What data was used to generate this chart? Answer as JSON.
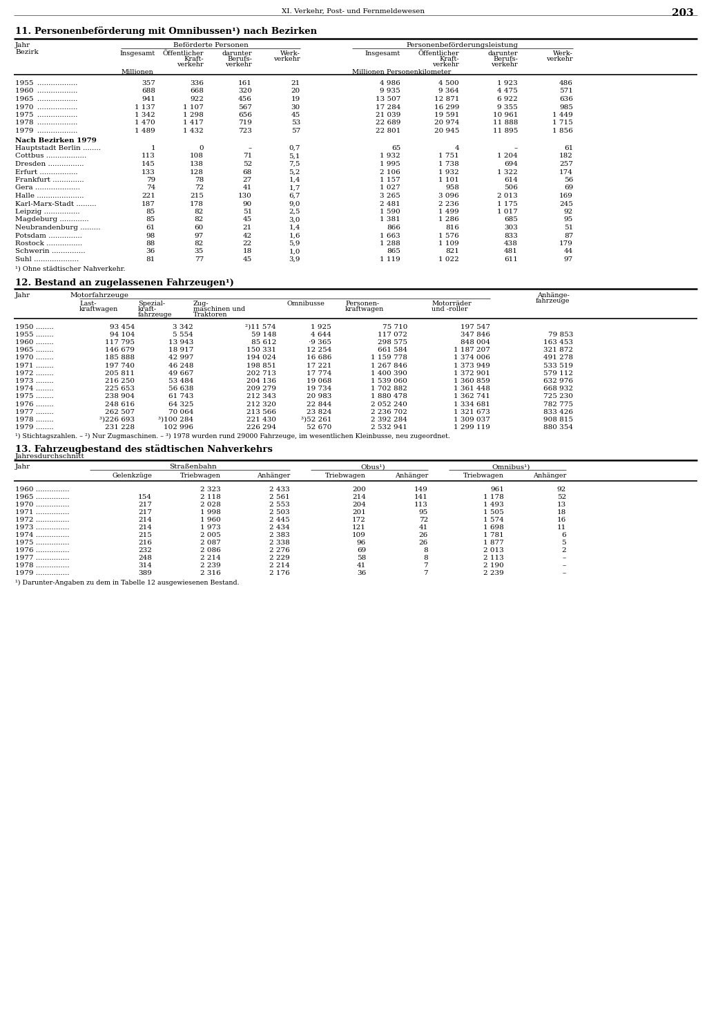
{
  "page_header": "XI. Verkehr, Post- und Fernmeldewesen",
  "page_number": "203",
  "background_color": "#ffffff",
  "text_color": "#000000",
  "section11_title": "11. Personenbeförderung mit Omnibussen¹) nach Bezirken",
  "section11_footnote": "¹) Ohne städtischer Nahverkehr.",
  "sec11_years": [
    [
      "1955",
      "357",
      "336",
      "161",
      "21",
      "4 986",
      "4 500",
      "1 923",
      "486"
    ],
    [
      "1960",
      "688",
      "668",
      "320",
      "20",
      "9 935",
      "9 364",
      "4 475",
      "571"
    ],
    [
      "1965",
      "941",
      "922",
      "456",
      "19",
      "13 507",
      "12 871",
      "6 922",
      "636"
    ],
    [
      "1970",
      "1 137",
      "1 107",
      "567",
      "30",
      "17 284",
      "16 299",
      "9 355",
      "985"
    ],
    [
      "1975",
      "1 342",
      "1 298",
      "656",
      "45",
      "21 039",
      "19 591",
      "10 961",
      "1 449"
    ],
    [
      "1978",
      "1 470",
      "1 417",
      "719",
      "53",
      "22 689",
      "20 974",
      "11 888",
      "1 715"
    ],
    [
      "1979",
      "1 489",
      "1 432",
      "723",
      "57",
      "22 801",
      "20 945",
      "11 895",
      "1 856"
    ]
  ],
  "sec11_bezirke_header": "Nach Bezirken 1979",
  "sec11_bezirke": [
    [
      "Hauptstadt Berlin",
      "1",
      "0",
      "–",
      "0,7",
      "65",
      "4",
      "–",
      "61"
    ],
    [
      "Cottbus",
      "113",
      "108",
      "71",
      "5,1",
      "1 932",
      "1 751",
      "1 204",
      "182"
    ],
    [
      "Dresden",
      "145",
      "138",
      "52",
      "7,5",
      "1 995",
      "1 738",
      "694",
      "257"
    ],
    [
      "Erfurt",
      "133",
      "128",
      "68",
      "5,2",
      "2 106",
      "1 932",
      "1 322",
      "174"
    ],
    [
      "Frankfurt",
      "79",
      "78",
      "27",
      "1,4",
      "1 157",
      "1 101",
      "614",
      "56"
    ],
    [
      "Gera",
      "74",
      "72",
      "41",
      "1,7",
      "1 027",
      "958",
      "506",
      "69"
    ],
    [
      "Halle",
      "221",
      "215",
      "130",
      "6,7",
      "3 265",
      "3 096",
      "2 013",
      "169"
    ],
    [
      "Karl-Marx-Stadt",
      "187",
      "178",
      "90",
      "9,0",
      "2 481",
      "2 236",
      "1 175",
      "245"
    ],
    [
      "Leipzig",
      "85",
      "82",
      "51",
      "2,5",
      "1 590",
      "1 499",
      "1 017",
      "92"
    ],
    [
      "Magdeburg",
      "85",
      "82",
      "45",
      "3,0",
      "1 381",
      "1 286",
      "685",
      "95"
    ],
    [
      "Neubrandenburg",
      "61",
      "60",
      "21",
      "1,4",
      "866",
      "816",
      "303",
      "51"
    ],
    [
      "Potsdam",
      "98",
      "97",
      "42",
      "1,6",
      "1 663",
      "1 576",
      "833",
      "87"
    ],
    [
      "Rostock",
      "88",
      "82",
      "22",
      "5,9",
      "1 288",
      "1 109",
      "438",
      "179"
    ],
    [
      "Schwerin",
      "36",
      "35",
      "18",
      "1,0",
      "865",
      "821",
      "481",
      "44"
    ],
    [
      "Suhl",
      "81",
      "77",
      "45",
      "3,9",
      "1 119",
      "1 022",
      "611",
      "97"
    ]
  ],
  "section12_title": "12. Bestand an zugelassenen Fahrzeugen¹)",
  "section12_footnotes": "¹) Stichtagszahlen. – ²) Nur Zugmaschinen. – ³) 1978 wurden rund 29000 Fahrzeuge, im wesentlichen Kleinbusse, neu zugeordnet.",
  "sec12_data": [
    [
      "1950",
      "93 454",
      "3 342",
      "²)11 574",
      "1 925",
      "75 710",
      "197 547",
      ""
    ],
    [
      "1955",
      "94 104",
      "5 554",
      "59 148",
      "4 644",
      "117 072",
      "347 846",
      "79 853"
    ],
    [
      "1960",
      "117 795",
      "13 943",
      "85 612",
      "·9 365",
      "298 575",
      "848 004",
      "163 453"
    ],
    [
      "1965",
      "146 679",
      "18 917",
      "150 331",
      "12 254",
      "661 584",
      "1 187 207",
      "321 872"
    ],
    [
      "1970",
      "185 888",
      "42 997",
      "194 024",
      "16 686",
      "1 159 778",
      "1 374 006",
      "491 278"
    ],
    [
      "1971",
      "197 740",
      "46 248",
      "198 851",
      "17 221",
      "1 267 846",
      "1 373 949",
      "533 519"
    ],
    [
      "1972",
      "205 811",
      "49 667",
      "202 713",
      "17 774",
      "1 400 390",
      "1 372 901",
      "579 112"
    ],
    [
      "1973",
      "216 250",
      "53 484",
      "204 136",
      "19 068",
      "1 539 060",
      "1 360 859",
      "632 976"
    ],
    [
      "1974",
      "225 653",
      "56 638",
      "209 279",
      "19 734",
      "1 702 882",
      "1 361 448",
      "668 932"
    ],
    [
      "1975",
      "238 904",
      "61 743",
      "212 343",
      "20 983",
      "1 880 478",
      "1 362 741",
      "725 230"
    ],
    [
      "1976",
      "248 616",
      "64 325",
      "212 320",
      "22 844",
      "2 052 240",
      "1 334 681",
      "782 775"
    ],
    [
      "1977",
      "262 507",
      "70 064",
      "213 566",
      "23 824",
      "2 236 702",
      "1 321 673",
      "833 426"
    ],
    [
      "1978",
      "³)226 693",
      "³)100 284",
      "221 430",
      "³)52 261",
      "2 392 284",
      "1 309 037",
      "908 815"
    ],
    [
      "1979",
      "231 228",
      "102 996",
      "226 294",
      "52 670",
      "2 532 941",
      "1 299 119",
      "880 354"
    ]
  ],
  "section13_title": "13. Fahrzeugbestand des städtischen Nahverkehrs",
  "section13_subtitle": "Jahresdurchschnitt",
  "section13_footnote": "¹) Darunter-Angaben zu dem in Tabelle 12 ausgewiesenen Bestand.",
  "sec13_data": [
    [
      "1960",
      "",
      "2 323",
      "2 433",
      "200",
      "149",
      "961",
      "92"
    ],
    [
      "1965",
      "154",
      "2 118",
      "2 561",
      "214",
      "141",
      "1 178",
      "52"
    ],
    [
      "1970",
      "217",
      "2 028",
      "2 553",
      "204",
      "113",
      "1 493",
      "13"
    ],
    [
      "1971",
      "217",
      "1 998",
      "2 503",
      "201",
      "95",
      "1 505",
      "18"
    ],
    [
      "1972",
      "214",
      "1 960",
      "2 445",
      "172",
      "72",
      "1 574",
      "16"
    ],
    [
      "1973",
      "214",
      "1 973",
      "2 434",
      "121",
      "41",
      "1 698",
      "11"
    ],
    [
      "1974",
      "215",
      "2 005",
      "2 383",
      "109",
      "26",
      "1 781",
      "6"
    ],
    [
      "1975",
      "216",
      "2 087",
      "2 338",
      "96",
      "26",
      "1 877",
      "5"
    ],
    [
      "1976",
      "232",
      "2 086",
      "2 276",
      "69",
      "8",
      "2 013",
      "2"
    ],
    [
      "1977",
      "248",
      "2 214",
      "2 229",
      "58",
      "8",
      "2 113",
      "–"
    ],
    [
      "1978",
      "314",
      "2 239",
      "2 214",
      "41",
      "7",
      "2 190",
      "–"
    ],
    [
      "1979",
      "389",
      "2 316",
      "2 176",
      "36",
      "7",
      "2 239",
      "–"
    ]
  ]
}
